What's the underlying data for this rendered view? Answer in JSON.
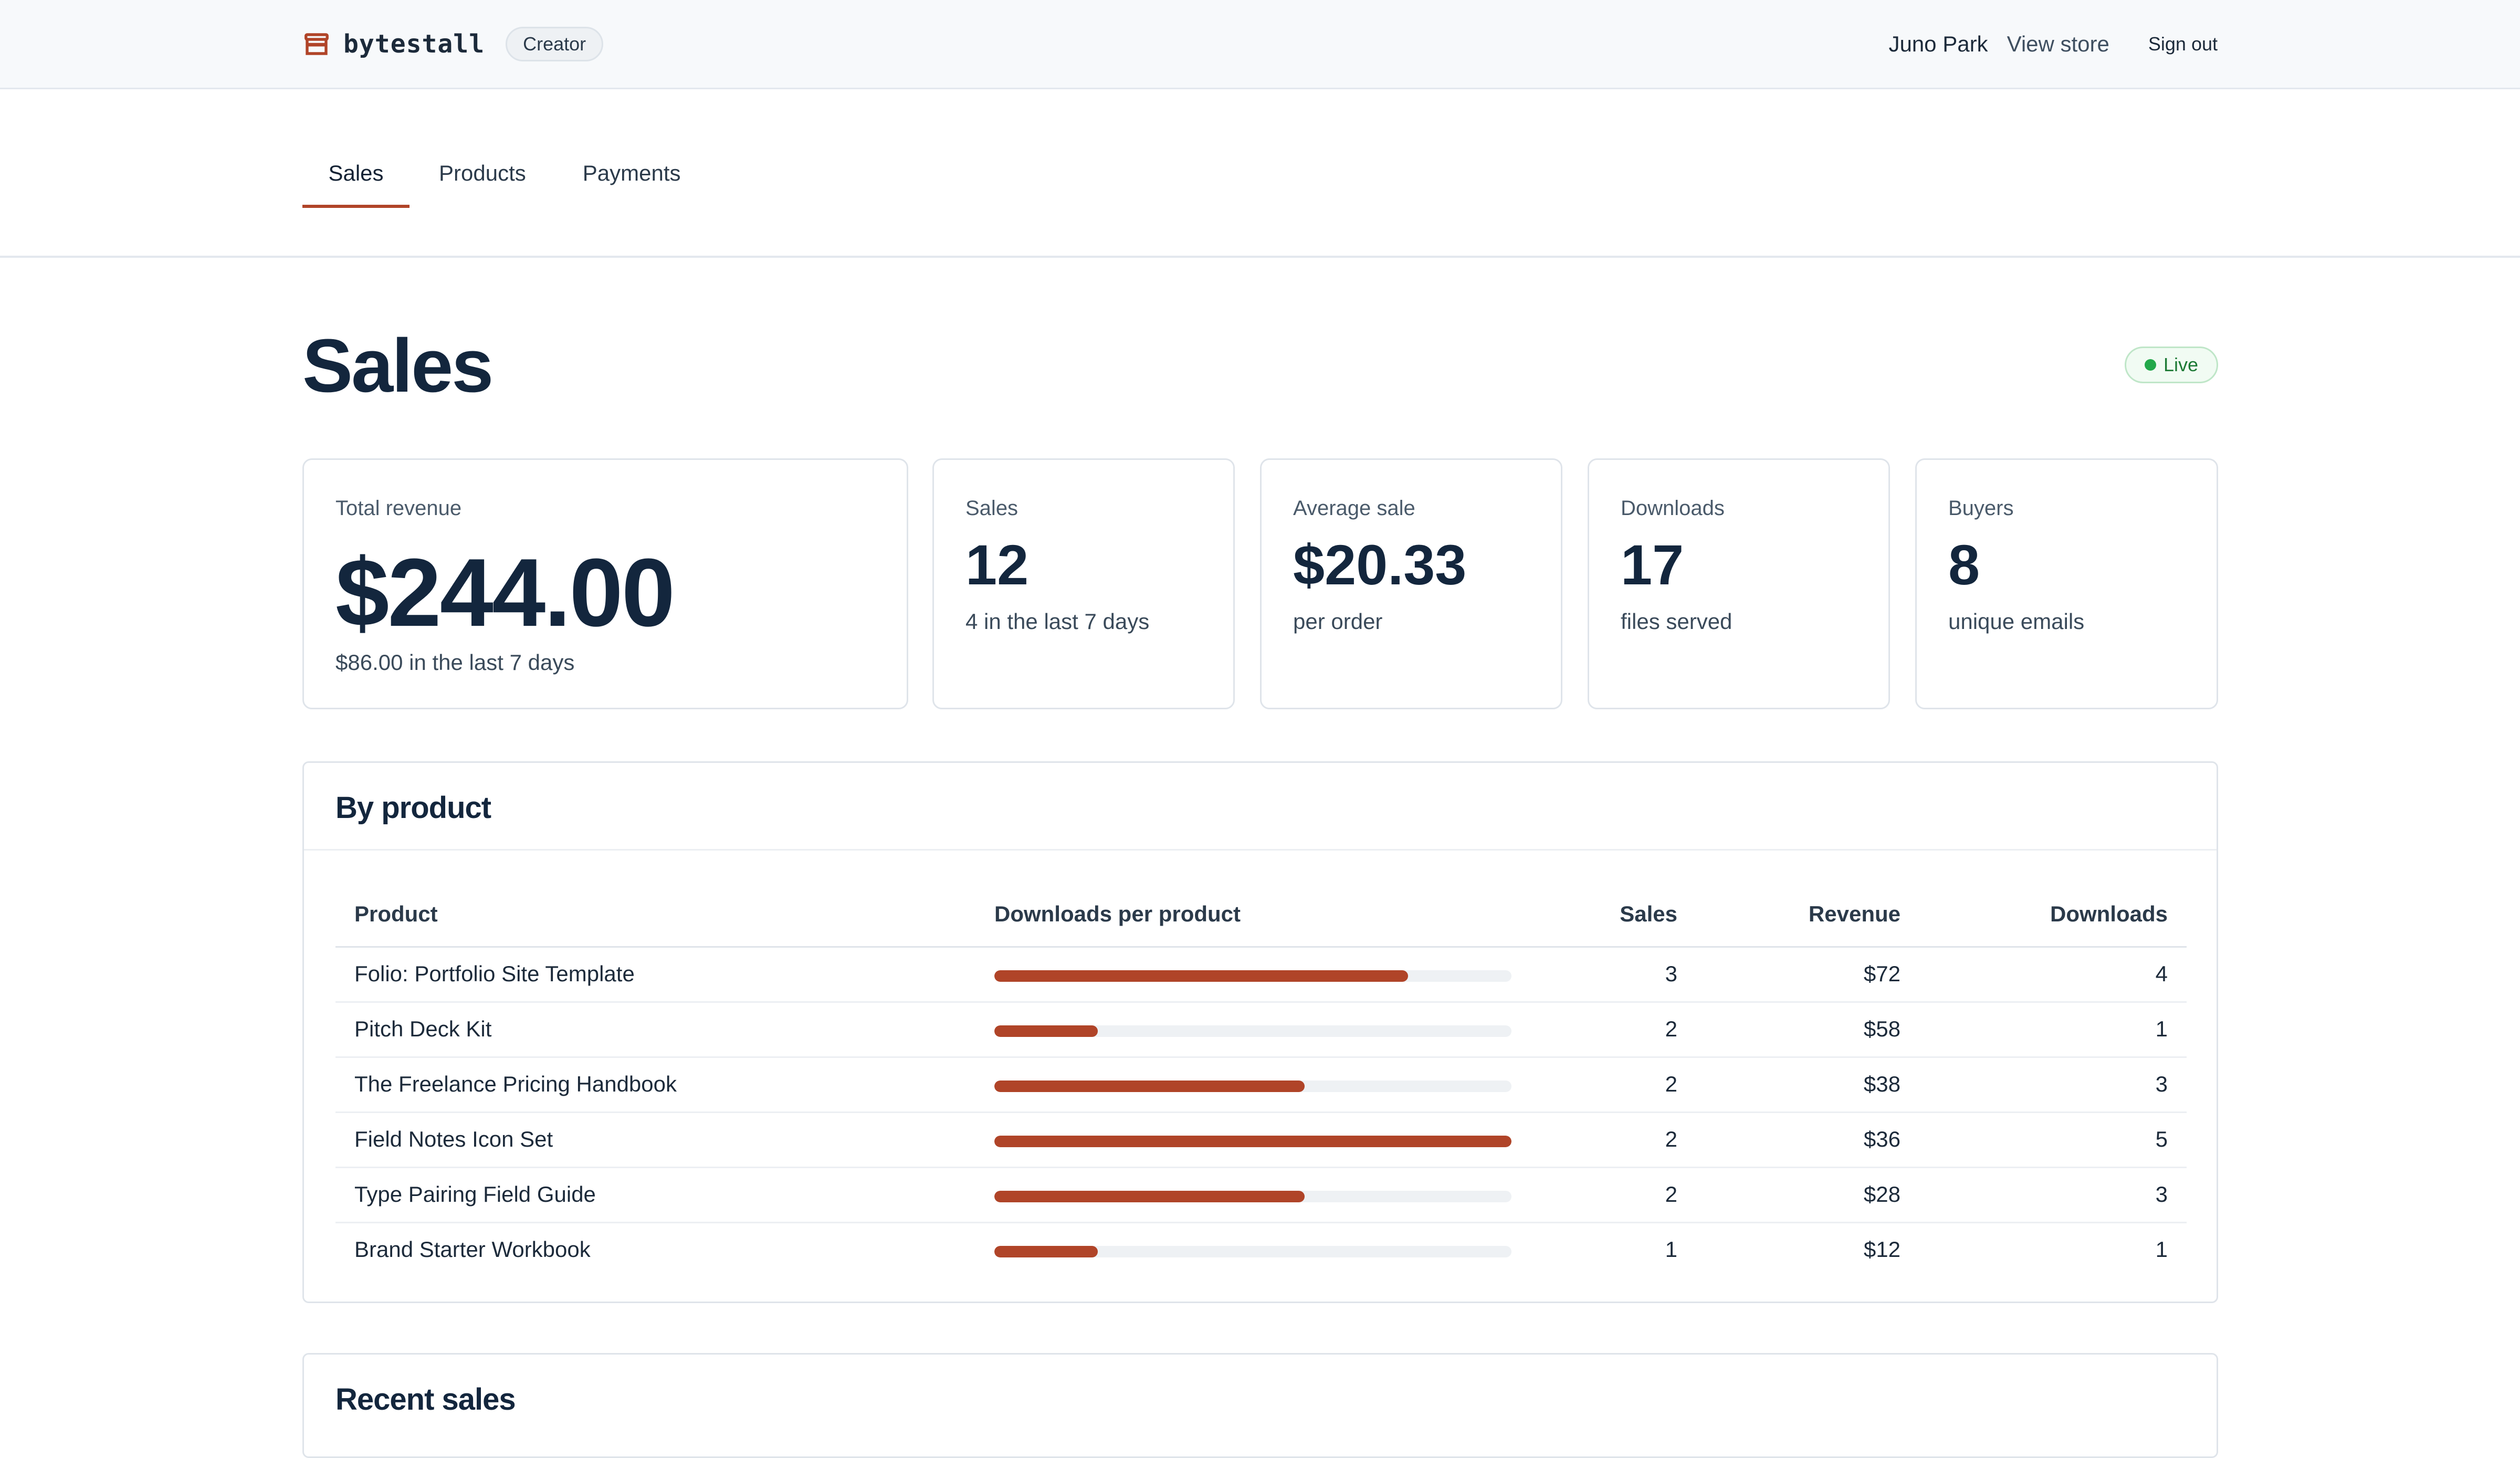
{
  "header": {
    "brand": "bytestall",
    "brand_icon": "storefront-icon",
    "badge": "Creator",
    "user_name": "Juno Park",
    "view_store": "View store",
    "sign_out": "Sign out"
  },
  "tabs": [
    {
      "label": "Sales",
      "active": true
    },
    {
      "label": "Products",
      "active": false
    },
    {
      "label": "Payments",
      "active": false
    }
  ],
  "page": {
    "title": "Sales",
    "status": "Live"
  },
  "stats": [
    {
      "label": "Total revenue",
      "value": "$244.00",
      "sub": "$86.00 in the last 7 days"
    },
    {
      "label": "Sales",
      "value": "12",
      "sub": "4 in the last 7 days"
    },
    {
      "label": "Average sale",
      "value": "$20.33",
      "sub": "per order"
    },
    {
      "label": "Downloads",
      "value": "17",
      "sub": "files served"
    },
    {
      "label": "Buyers",
      "value": "8",
      "sub": "unique emails"
    }
  ],
  "by_product": {
    "title": "By product",
    "columns": {
      "product": "Product",
      "bar": "Downloads per product",
      "sales": "Sales",
      "revenue": "Revenue",
      "downloads": "Downloads"
    },
    "max_downloads": 5,
    "rows": [
      {
        "product": "Folio: Portfolio Site Template",
        "sales": "3",
        "revenue": "$72",
        "downloads": 4
      },
      {
        "product": "Pitch Deck Kit",
        "sales": "2",
        "revenue": "$58",
        "downloads": 1
      },
      {
        "product": "The Freelance Pricing Handbook",
        "sales": "2",
        "revenue": "$38",
        "downloads": 3
      },
      {
        "product": "Field Notes Icon Set",
        "sales": "2",
        "revenue": "$36",
        "downloads": 5
      },
      {
        "product": "Type Pairing Field Guide",
        "sales": "2",
        "revenue": "$28",
        "downloads": 3
      },
      {
        "product": "Brand Starter Workbook",
        "sales": "1",
        "revenue": "$12",
        "downloads": 1
      }
    ]
  },
  "recent_sales": {
    "title": "Recent sales"
  },
  "colors": {
    "accent": "#b04428",
    "live": "#22a84a",
    "text": "#13263d"
  }
}
